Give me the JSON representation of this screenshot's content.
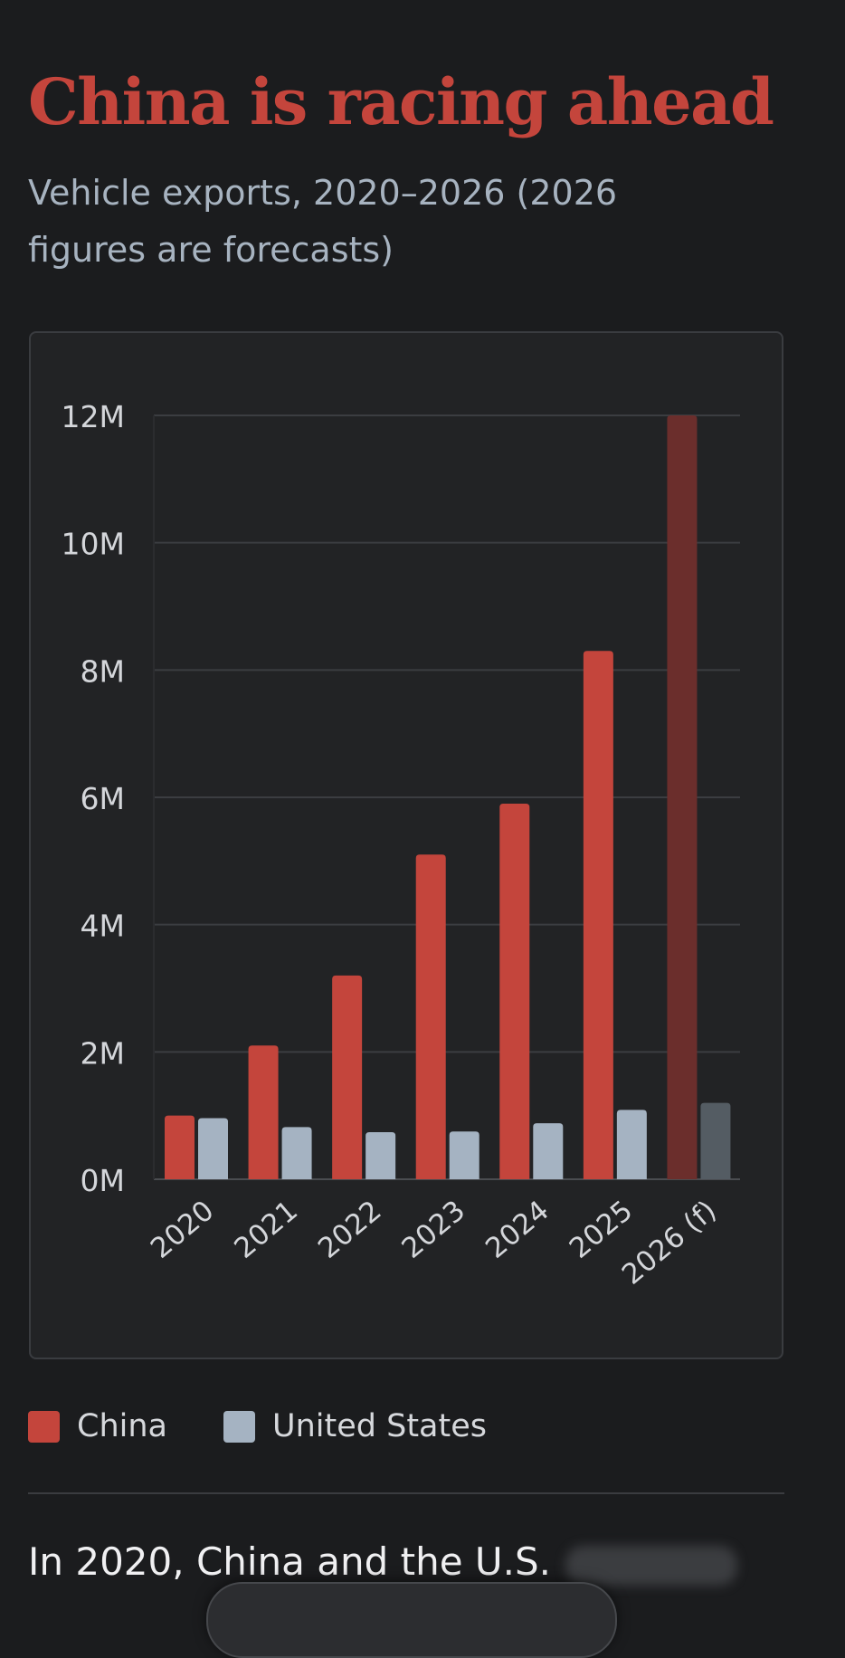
{
  "header": {
    "title": "China is racing ahead",
    "subtitle": "Vehicle exports, 2020–2026 (2026 figures are forecasts)"
  },
  "chart_data": {
    "type": "bar",
    "categories": [
      "2020",
      "2021",
      "2022",
      "2023",
      "2024",
      "2025",
      "2026 (f)"
    ],
    "series": [
      {
        "name": "China",
        "values": [
          1.0,
          2.1,
          3.2,
          5.1,
          5.9,
          8.3,
          12.0
        ],
        "color": "#c4453c",
        "forecast_color": "#6b2e2c"
      },
      {
        "name": "United States",
        "values": [
          0.96,
          0.82,
          0.74,
          0.75,
          0.88,
          1.09,
          1.2
        ],
        "color": "#a5b3c2",
        "forecast_color": "#545c63"
      }
    ],
    "forecast_index": 6,
    "yticks": [
      0,
      2,
      4,
      6,
      8,
      10,
      12
    ],
    "ytick_labels": [
      "0M",
      "2M",
      "4M",
      "6M",
      "8M",
      "10M",
      "12M"
    ],
    "ylim": [
      0,
      12
    ],
    "unit": "millions of vehicles",
    "grid": true,
    "legend_position": "bottom-left"
  },
  "legend": {
    "items": [
      {
        "label": "China",
        "color": "#c4453c"
      },
      {
        "label": "United States",
        "color": "#a5b3c2"
      }
    ]
  },
  "article": {
    "text": "In 2020, China and the U.S."
  }
}
